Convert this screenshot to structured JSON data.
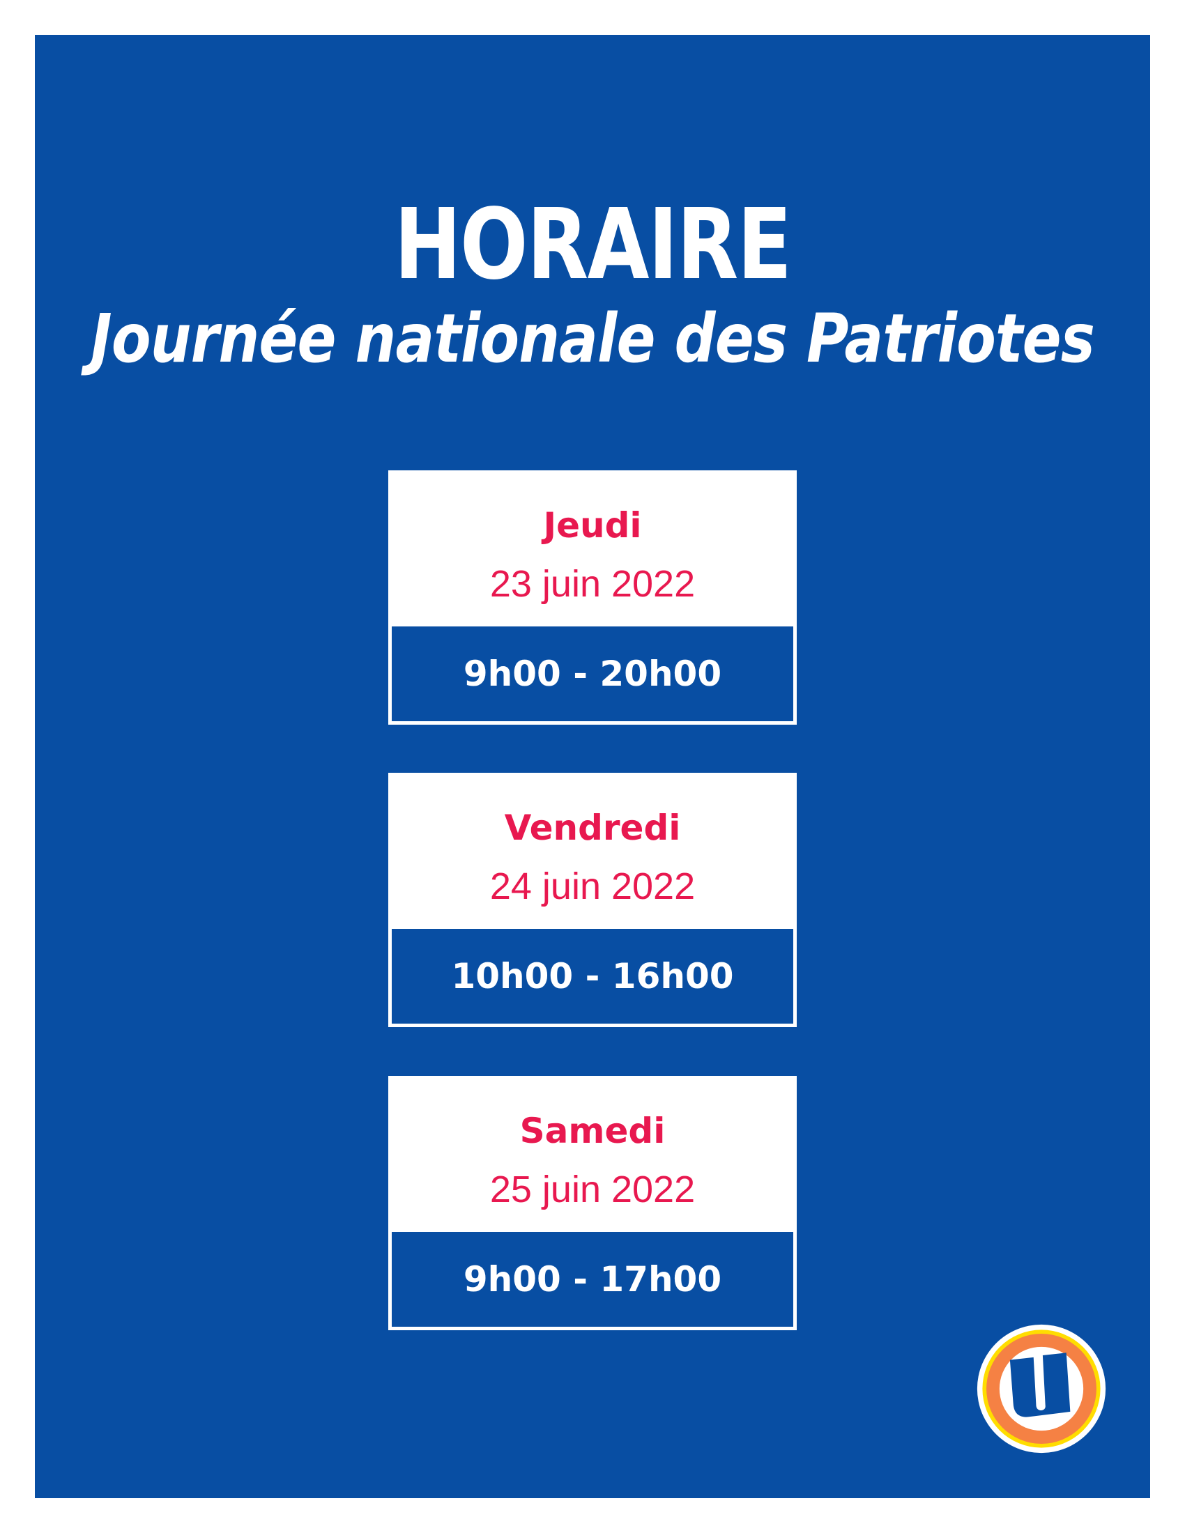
{
  "header": {
    "title": "HORAIRE",
    "subtitle": "Journée nationale des Patriotes"
  },
  "schedule": [
    {
      "day": "Jeudi",
      "date": "23 juin 2022",
      "hours": "9h00 - 20h00"
    },
    {
      "day": "Vendredi",
      "date": "24 juin 2022",
      "hours": "10h00 - 16h00"
    },
    {
      "day": "Samedi",
      "date": "25 juin 2022",
      "hours": "9h00 - 17h00"
    }
  ],
  "logo": {
    "icon": "uniprix-u-logo",
    "letter": "U"
  },
  "colors": {
    "background": "#084ea3",
    "accent": "#e8184f",
    "logo_orange": "#f58144",
    "logo_yellow": "#ffdd00"
  }
}
